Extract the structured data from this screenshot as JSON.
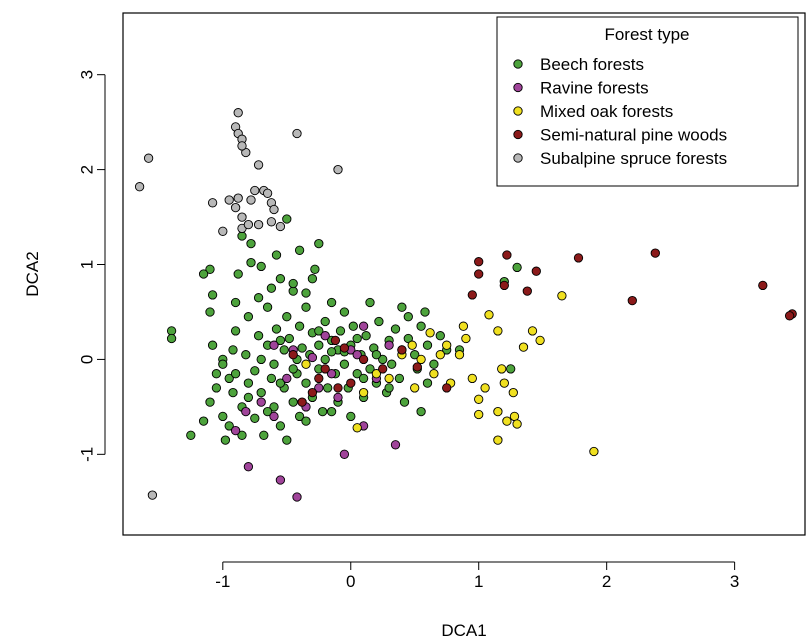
{
  "chart_data": {
    "type": "scatter",
    "xlabel": "DCA1",
    "ylabel": "DCA2",
    "xlim": [
      -1.78,
      3.55
    ],
    "ylim": [
      -1.85,
      3.65
    ],
    "xticks": [
      -1,
      0,
      1,
      2,
      3
    ],
    "xtick_labels": [
      "-1",
      "0",
      "1",
      "2",
      "3"
    ],
    "yticks": [
      -1,
      0,
      1,
      2,
      3
    ],
    "ytick_labels": [
      "-1",
      "0",
      "1",
      "2",
      "3"
    ],
    "grid": false,
    "legend": {
      "title": "Forest type",
      "placement": "top-right",
      "entries": [
        "Beech forests",
        "Ravine forests",
        "Mixed oak forests",
        "Semi-natural pine woods",
        "Subalpine spruce forests"
      ]
    },
    "series": [
      {
        "name": "Beech forests",
        "color": "#4da33c",
        "points": [
          [
            -1.25,
            -0.8
          ],
          [
            -1.15,
            -0.65
          ],
          [
            -1.1,
            -0.45
          ],
          [
            -1.05,
            -0.3
          ],
          [
            -1.08,
            0.15
          ],
          [
            -1.1,
            0.5
          ],
          [
            -1.08,
            0.68
          ],
          [
            -1.1,
            0.95
          ],
          [
            -1.05,
            -0.15
          ],
          [
            -1.0,
            0.0
          ],
          [
            -1.0,
            -0.05
          ],
          [
            -1.0,
            -0.6
          ],
          [
            -0.98,
            -0.85
          ],
          [
            -0.95,
            -0.2
          ],
          [
            -0.95,
            -0.7
          ],
          [
            -0.92,
            -0.35
          ],
          [
            -0.92,
            0.1
          ],
          [
            -0.9,
            0.3
          ],
          [
            -0.9,
            0.6
          ],
          [
            -0.88,
            0.9
          ],
          [
            -0.85,
            1.3
          ],
          [
            -0.85,
            -0.5
          ],
          [
            -0.85,
            -0.8
          ],
          [
            -0.82,
            0.05
          ],
          [
            -0.8,
            -0.25
          ],
          [
            -0.8,
            0.45
          ],
          [
            -0.78,
            1.02
          ],
          [
            -0.78,
            1.22
          ],
          [
            -0.75,
            -0.12
          ],
          [
            -0.75,
            -0.62
          ],
          [
            -0.72,
            0.25
          ],
          [
            -0.72,
            0.65
          ],
          [
            -0.7,
            0.98
          ],
          [
            -0.7,
            -0.35
          ],
          [
            -0.68,
            -0.8
          ],
          [
            -0.65,
            0.15
          ],
          [
            -0.65,
            0.55
          ],
          [
            -0.62,
            -0.2
          ],
          [
            -0.62,
            0.75
          ],
          [
            -0.6,
            -0.5
          ],
          [
            -0.6,
            -0.05
          ],
          [
            -0.58,
            1.1
          ],
          [
            -0.58,
            0.32
          ],
          [
            -0.55,
            -0.7
          ],
          [
            -0.55,
            0.85
          ],
          [
            -0.52,
            -0.3
          ],
          [
            -0.52,
            0.1
          ],
          [
            -0.5,
            0.45
          ],
          [
            -0.5,
            -0.85
          ],
          [
            -0.48,
            0.22
          ],
          [
            -0.45,
            -0.45
          ],
          [
            -0.45,
            0.72
          ],
          [
            -0.42,
            0.0
          ],
          [
            -0.42,
            -0.15
          ],
          [
            -0.4,
            0.35
          ],
          [
            -0.4,
            -0.6
          ],
          [
            -0.38,
            0.12
          ],
          [
            -0.35,
            -0.25
          ],
          [
            -0.35,
            0.55
          ],
          [
            -0.32,
            0.05
          ],
          [
            -0.3,
            -0.4
          ],
          [
            -0.3,
            0.28
          ],
          [
            -0.28,
            0.95
          ],
          [
            -0.25,
            -0.1
          ],
          [
            -0.25,
            0.15
          ],
          [
            -0.22,
            -0.55
          ],
          [
            -0.2,
            0.4
          ],
          [
            -0.2,
            0.0
          ],
          [
            -0.18,
            -0.3
          ],
          [
            -0.15,
            0.2
          ],
          [
            -0.15,
            0.6
          ],
          [
            -0.12,
            -0.15
          ],
          [
            -0.1,
            0.1
          ],
          [
            -0.1,
            -0.45
          ],
          [
            -0.08,
            0.3
          ],
          [
            -0.05,
            -0.05
          ],
          [
            -0.05,
            0.5
          ],
          [
            -0.02,
            -0.3
          ],
          [
            0.0,
            0.15
          ],
          [
            0.0,
            -0.6
          ],
          [
            0.02,
            0.35
          ],
          [
            0.05,
            -0.15
          ],
          [
            0.08,
            0.05
          ],
          [
            0.1,
            -0.4
          ],
          [
            0.12,
            0.25
          ],
          [
            0.15,
            0.6
          ],
          [
            0.15,
            -0.1
          ],
          [
            0.18,
            0.12
          ],
          [
            0.2,
            -0.25
          ],
          [
            0.22,
            0.4
          ],
          [
            0.25,
            0.0
          ],
          [
            0.28,
            -0.35
          ],
          [
            0.3,
            0.2
          ],
          [
            0.32,
            -0.05
          ],
          [
            0.35,
            0.32
          ],
          [
            0.38,
            -0.2
          ],
          [
            0.4,
            0.1
          ],
          [
            0.42,
            -0.45
          ],
          [
            0.45,
            0.45
          ],
          [
            0.5,
            0.05
          ],
          [
            0.52,
            -0.1
          ],
          [
            0.55,
            0.35
          ],
          [
            0.58,
            0.5
          ],
          [
            0.6,
            0.15
          ],
          [
            0.65,
            -0.05
          ],
          [
            0.7,
            0.25
          ],
          [
            0.75,
            0.1
          ],
          [
            0.55,
            -0.55
          ],
          [
            -0.4,
            1.15
          ],
          [
            -0.45,
            0.8
          ],
          [
            -0.25,
            1.22
          ],
          [
            -0.5,
            1.48
          ],
          [
            -0.3,
            0.85
          ],
          [
            -0.35,
            0.7
          ],
          [
            0.4,
            0.55
          ],
          [
            1.3,
            0.97
          ],
          [
            1.2,
            0.82
          ],
          [
            1.25,
            -0.1
          ],
          [
            0.85,
            0.1
          ],
          [
            -1.4,
            0.3
          ],
          [
            -1.4,
            0.22
          ],
          [
            -1.15,
            0.9
          ],
          [
            -0.8,
            -0.4
          ],
          [
            -0.65,
            -0.55
          ],
          [
            -0.55,
            -0.25
          ],
          [
            -0.35,
            -0.65
          ],
          [
            -0.15,
            -0.55
          ],
          [
            -0.05,
            0.08
          ],
          [
            0.05,
            0.22
          ],
          [
            0.2,
            0.05
          ],
          [
            -0.9,
            -0.15
          ],
          [
            -0.7,
            0.0
          ],
          [
            -0.55,
            0.2
          ],
          [
            -0.45,
            -0.1
          ],
          [
            -0.25,
            0.3
          ],
          [
            -0.15,
            0.08
          ],
          [
            0.1,
            -0.2
          ],
          [
            0.3,
            -0.3
          ],
          [
            0.45,
            0.22
          ],
          [
            0.6,
            -0.25
          ]
        ]
      },
      {
        "name": "Ravine forests",
        "color": "#a0449a",
        "points": [
          [
            -0.8,
            -1.13
          ],
          [
            -0.55,
            -1.27
          ],
          [
            -0.42,
            -1.45
          ],
          [
            -0.05,
            -1.0
          ],
          [
            -0.9,
            -0.75
          ],
          [
            -0.82,
            -0.55
          ],
          [
            -0.7,
            -0.45
          ],
          [
            -0.6,
            -0.6
          ],
          [
            -0.5,
            -0.2
          ],
          [
            -0.45,
            0.1
          ],
          [
            -0.35,
            -0.5
          ],
          [
            -0.3,
            0.02
          ],
          [
            -0.25,
            -0.3
          ],
          [
            -0.2,
            0.25
          ],
          [
            -0.1,
            -0.4
          ],
          [
            0.0,
            0.1
          ],
          [
            0.1,
            0.35
          ],
          [
            0.2,
            -0.2
          ],
          [
            0.3,
            0.15
          ],
          [
            0.1,
            -0.7
          ],
          [
            0.35,
            -0.9
          ],
          [
            -0.6,
            0.15
          ],
          [
            -0.15,
            -0.15
          ],
          [
            0.05,
            0.05
          ]
        ]
      },
      {
        "name": "Mixed oak forests",
        "color": "#f0e020",
        "points": [
          [
            1.65,
            0.67
          ],
          [
            1.48,
            0.2
          ],
          [
            1.35,
            0.13
          ],
          [
            1.42,
            0.3
          ],
          [
            1.08,
            0.47
          ],
          [
            1.15,
            0.3
          ],
          [
            0.88,
            0.35
          ],
          [
            0.9,
            0.22
          ],
          [
            0.85,
            0.05
          ],
          [
            0.78,
            -0.25
          ],
          [
            0.95,
            -0.2
          ],
          [
            1.0,
            -0.42
          ],
          [
            1.15,
            -0.55
          ],
          [
            1.22,
            -0.65
          ],
          [
            1.28,
            -0.6
          ],
          [
            1.0,
            -0.58
          ],
          [
            1.15,
            -0.85
          ],
          [
            1.3,
            -0.68
          ],
          [
            1.27,
            -0.35
          ],
          [
            1.18,
            -0.1
          ],
          [
            1.2,
            -0.25
          ],
          [
            1.05,
            -0.3
          ],
          [
            1.9,
            -0.97
          ],
          [
            0.7,
            0.05
          ],
          [
            0.65,
            -0.15
          ],
          [
            0.55,
            0.0
          ],
          [
            0.48,
            0.15
          ],
          [
            0.5,
            -0.3
          ],
          [
            0.4,
            0.05
          ],
          [
            0.3,
            -0.2
          ],
          [
            0.2,
            -0.15
          ],
          [
            0.1,
            -0.35
          ],
          [
            0.05,
            -0.72
          ],
          [
            0.62,
            0.28
          ],
          [
            -0.35,
            -0.05
          ],
          [
            0.75,
            0.15
          ]
        ]
      },
      {
        "name": "Semi-natural pine woods",
        "color": "#8b1a1a",
        "points": [
          [
            3.45,
            0.48
          ],
          [
            3.43,
            0.46
          ],
          [
            3.22,
            0.78
          ],
          [
            2.38,
            1.12
          ],
          [
            2.2,
            0.62
          ],
          [
            1.78,
            1.07
          ],
          [
            1.45,
            0.93
          ],
          [
            1.38,
            0.72
          ],
          [
            1.22,
            1.1
          ],
          [
            1.2,
            0.78
          ],
          [
            1.0,
            1.03
          ],
          [
            1.0,
            0.9
          ],
          [
            0.95,
            0.68
          ],
          [
            0.75,
            -0.3
          ],
          [
            0.52,
            -0.08
          ],
          [
            0.4,
            0.1
          ],
          [
            0.25,
            -0.1
          ],
          [
            0.1,
            0.0
          ],
          [
            0.0,
            -0.25
          ],
          [
            -0.12,
            0.2
          ],
          [
            -0.2,
            -0.1
          ],
          [
            -0.3,
            -0.35
          ],
          [
            -0.38,
            -0.45
          ],
          [
            -0.45,
            0.05
          ],
          [
            -0.25,
            -0.2
          ],
          [
            -0.1,
            -0.3
          ],
          [
            -0.05,
            0.12
          ]
        ]
      },
      {
        "name": "Subalpine spruce forests",
        "color": "#b8b8b8",
        "points": [
          [
            -1.65,
            1.82
          ],
          [
            -1.58,
            2.12
          ],
          [
            -1.55,
            -1.43
          ],
          [
            -0.88,
            2.6
          ],
          [
            -0.9,
            2.45
          ],
          [
            -0.88,
            2.38
          ],
          [
            -0.85,
            2.32
          ],
          [
            -0.82,
            2.18
          ],
          [
            -0.85,
            2.25
          ],
          [
            -0.95,
            1.68
          ],
          [
            -0.88,
            1.7
          ],
          [
            -0.78,
            1.68
          ],
          [
            -0.75,
            1.78
          ],
          [
            -0.72,
            2.05
          ],
          [
            -0.68,
            1.78
          ],
          [
            -0.65,
            1.75
          ],
          [
            -0.62,
            1.65
          ],
          [
            -0.6,
            1.58
          ],
          [
            -0.85,
            1.38
          ],
          [
            -0.8,
            1.42
          ],
          [
            -0.72,
            1.42
          ],
          [
            -0.9,
            1.6
          ],
          [
            -0.62,
            1.45
          ],
          [
            -0.55,
            1.4
          ],
          [
            -1.08,
            1.65
          ],
          [
            -1.0,
            1.35
          ],
          [
            -0.42,
            2.38
          ],
          [
            -0.1,
            2.0
          ],
          [
            -0.85,
            1.5
          ]
        ]
      }
    ]
  }
}
